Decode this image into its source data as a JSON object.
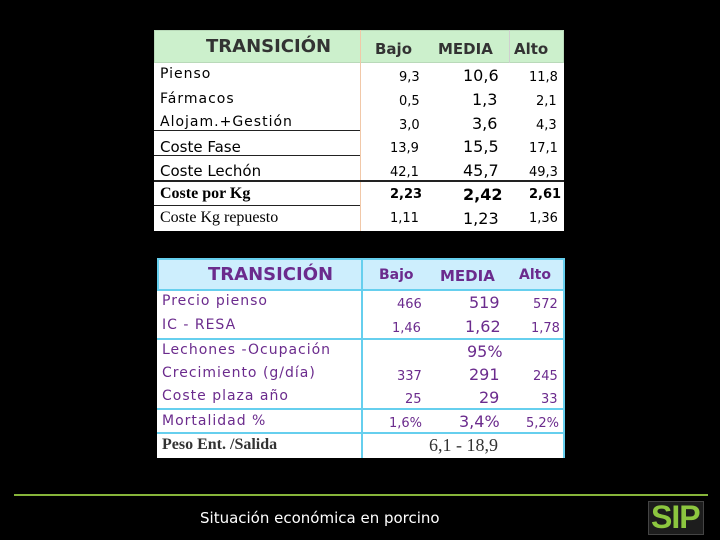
{
  "table1": {
    "title": "TRANSICIÓN",
    "col_low": "Bajo",
    "col_mid": "MEDIA",
    "col_high": "Alto",
    "rows": [
      {
        "label": "Pienso",
        "low": "9,3",
        "mid": "10,6",
        "high": "11,8"
      },
      {
        "label": "Fármacos",
        "low": "0,5",
        "mid": "1,3",
        "high": "2,1"
      },
      {
        "label": "Alojam.+Gestión",
        "low": "3,0",
        "mid": "3,6",
        "high": "4,3"
      },
      {
        "label": "Coste Fase",
        "low": "13,9",
        "mid": "15,5",
        "high": "17,1"
      },
      {
        "label": "Coste Lechón",
        "low": "42,1",
        "mid": "45,7",
        "high": "49,3"
      },
      {
        "label": "Coste por Kg",
        "low": "2,23",
        "mid": "2,42",
        "high": "2,61"
      },
      {
        "label": "Coste Kg repuesto",
        "low": "1,11",
        "mid": "1,23",
        "high": "1,36"
      }
    ]
  },
  "table2": {
    "title": "TRANSICIÓN",
    "col_low": "Bajo",
    "col_mid": "MEDIA",
    "col_high": "Alto",
    "rows": [
      {
        "label": "Precio pienso",
        "low": "466",
        "mid": "519",
        "high": "572"
      },
      {
        "label": "IC - RESA",
        "low": "1,46",
        "mid": "1,62",
        "high": "1,78"
      },
      {
        "label": "Lechones -Ocupación",
        "low": "",
        "mid": "95%",
        "high": ""
      },
      {
        "label": "Crecimiento (g/día)",
        "low": "337",
        "mid": "291",
        "high": "245"
      },
      {
        "label": "Coste plaza año",
        "low": "25",
        "mid": "29",
        "high": "33"
      },
      {
        "label": "Mortalidad %",
        "low": "1,6%",
        "mid": "3,4%",
        "high": "5,2%"
      },
      {
        "label": "Peso Ent. /Salida",
        "low": "",
        "mid": "6,1 - 18,9",
        "high": ""
      }
    ]
  },
  "footer": {
    "text": "Situación económica en porcino",
    "logo": "SIP"
  },
  "colors": {
    "header1_bg": "#ccf0cc",
    "header2_bg": "#cdeefd",
    "header2_border": "#66cfee",
    "purple_text": "#6b2b8d",
    "footer_line": "#86b43a",
    "logo_green": "#8cc63f"
  }
}
